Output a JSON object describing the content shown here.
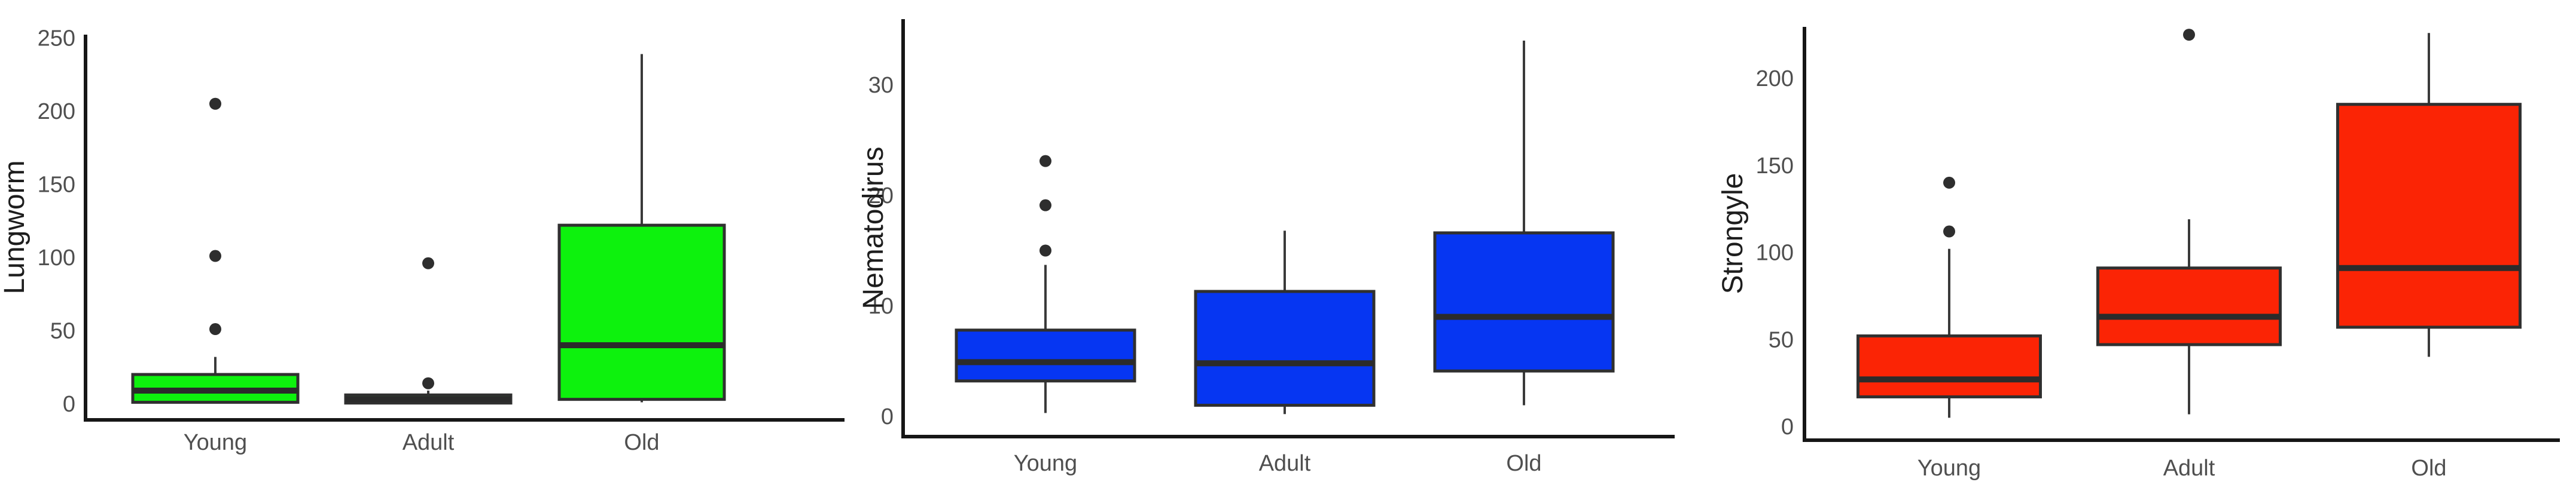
{
  "chart_data": [
    {
      "type": "boxplot",
      "ylabel": "Lungworm",
      "categories": [
        "Young",
        "Adult",
        "Old"
      ],
      "yticks": [
        0,
        50,
        100,
        150,
        200,
        250
      ],
      "ylim": [
        0,
        252
      ],
      "grid": false,
      "legend": false,
      "box_fill": "#0df20d",
      "series": [
        {
          "name": "Young",
          "q1": 1,
          "median": 9,
          "q3": 20,
          "whisker_low": 0,
          "whisker_high": 32,
          "outliers": [
            51,
            101,
            205
          ]
        },
        {
          "name": "Adult",
          "q1": 0.5,
          "median": 3,
          "q3": 6,
          "whisker_low": 0,
          "whisker_high": 9,
          "outliers": [
            14,
            96
          ]
        },
        {
          "name": "Old",
          "q1": 3,
          "median": 40,
          "q3": 122,
          "whisker_low": 1,
          "whisker_high": 239,
          "outliers": []
        }
      ]
    },
    {
      "type": "boxplot",
      "ylabel": "Nematodirus",
      "categories": [
        "Young",
        "Adult",
        "Old"
      ],
      "yticks": [
        0,
        10,
        20,
        30
      ],
      "ylim": [
        0,
        36
      ],
      "grid": false,
      "legend": false,
      "box_fill": "#0636f2",
      "series": [
        {
          "name": "Young",
          "q1": 3.2,
          "median": 4.9,
          "q3": 7.8,
          "whisker_low": 0.3,
          "whisker_high": 13.7,
          "outliers": [
            15,
            19.1,
            23.1
          ]
        },
        {
          "name": "Adult",
          "q1": 1.0,
          "median": 4.8,
          "q3": 11.3,
          "whisker_low": 0.2,
          "whisker_high": 16.8,
          "outliers": []
        },
        {
          "name": "Old",
          "q1": 4.1,
          "median": 9.0,
          "q3": 16.6,
          "whisker_low": 1.0,
          "whisker_high": 34.0,
          "outliers": []
        }
      ]
    },
    {
      "type": "boxplot",
      "ylabel": "Strongyle",
      "categories": [
        "Young",
        "Adult",
        "Old"
      ],
      "yticks": [
        0,
        50,
        100,
        150,
        200
      ],
      "ylim": [
        0,
        235
      ],
      "grid": false,
      "legend": false,
      "box_fill": "#fb2405",
      "series": [
        {
          "name": "Young",
          "q1": 17,
          "median": 27,
          "q3": 52,
          "whisker_low": 5,
          "whisker_high": 102,
          "outliers": [
            112,
            140
          ]
        },
        {
          "name": "Adult",
          "q1": 47,
          "median": 63,
          "q3": 91,
          "whisker_low": 7,
          "whisker_high": 119,
          "outliers": [
            225
          ]
        },
        {
          "name": "Old",
          "q1": 57,
          "median": 91,
          "q3": 185,
          "whisker_low": 40,
          "whisker_high": 226,
          "outliers": []
        }
      ]
    }
  ],
  "styles": {
    "background": "#ffffff",
    "axis_color": "#161616",
    "edge_color": "#303030",
    "median_color": "#2b2b2b",
    "whisker_color": "#3a3a3a",
    "outlier_color": "#2e2e2e",
    "tick_label_color": "#4f4f4f",
    "category_label_color": "#4f4f4f",
    "axis_title_color": "#1d1d1d"
  }
}
